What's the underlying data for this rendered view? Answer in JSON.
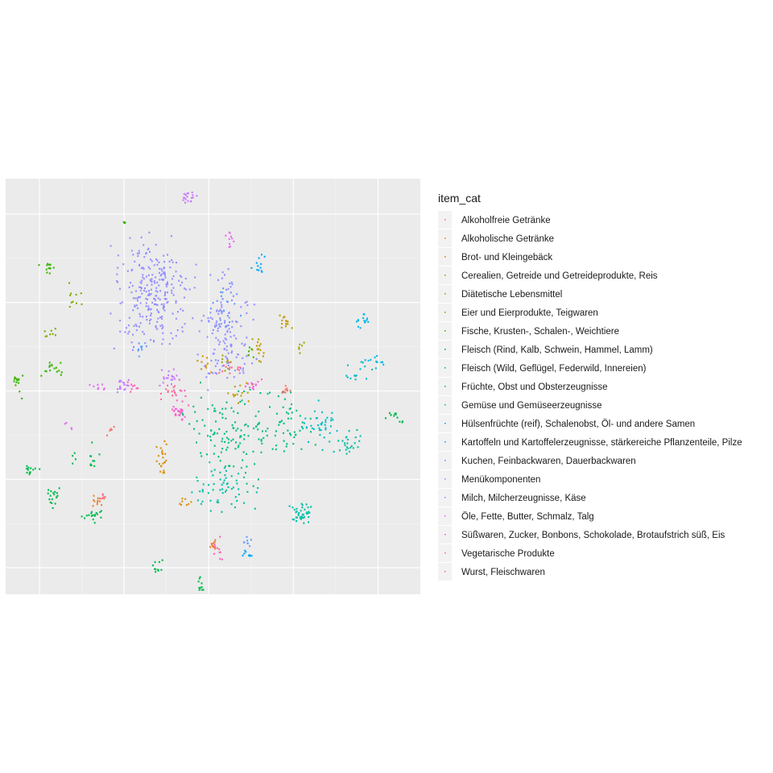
{
  "chart_data": {
    "type": "scatter",
    "title": "",
    "xlabel": "",
    "ylabel": "",
    "x_ticks_shown": false,
    "y_ticks_shown": false,
    "xlim": [
      -48,
      50
    ],
    "ylim": [
      -46,
      48
    ],
    "grid": true,
    "legend_position": "right",
    "legend_title": "item_cat",
    "series": [
      {
        "name": "Alkoholfreie Getränke",
        "color": "#F8766D",
        "clusters": [
          {
            "cx": 18,
            "cy": 0,
            "sx": 1.6,
            "sy": 1.2,
            "n": 10
          },
          {
            "cx": -23,
            "cy": -9,
            "sx": 2,
            "sy": 1,
            "n": 6
          }
        ]
      },
      {
        "name": "Alkoholische Getränke",
        "color": "#EA8331",
        "clusters": [
          {
            "cx": -26,
            "cy": -25,
            "sx": 2.2,
            "sy": 1,
            "n": 12
          },
          {
            "cx": 1,
            "cy": -35,
            "sx": 1,
            "sy": 1.5,
            "n": 12
          }
        ]
      },
      {
        "name": "Brot- und Kleingebäck",
        "color": "#D89000",
        "clusters": [
          {
            "cx": -1,
            "cy": 6,
            "sx": 1.5,
            "sy": 1.5,
            "n": 10
          },
          {
            "cx": -11,
            "cy": -15,
            "sx": 1,
            "sy": 3,
            "n": 22
          },
          {
            "cx": -6,
            "cy": -25,
            "sx": 1.2,
            "sy": 1.5,
            "n": 8
          }
        ]
      },
      {
        "name": "Cerealien, Getreide und Getreideprodukte, Reis",
        "color": "#C09B00",
        "clusters": [
          {
            "cx": 12,
            "cy": 9,
            "sx": 1.5,
            "sy": 2.5,
            "n": 16
          },
          {
            "cx": 18,
            "cy": 15,
            "sx": 1.5,
            "sy": 1.5,
            "n": 14
          },
          {
            "cx": 7,
            "cy": 0,
            "sx": 2.5,
            "sy": 2,
            "n": 14
          }
        ]
      },
      {
        "name": "Diätetische Lebensmittel",
        "color": "#A3A500",
        "clusters": [
          {
            "cx": 22,
            "cy": 10,
            "sx": 1,
            "sy": 1,
            "n": 6
          },
          {
            "cx": 4,
            "cy": 7,
            "sx": 1.5,
            "sy": 1.5,
            "n": 8
          }
        ]
      },
      {
        "name": "Eier und Eierprodukte, Teigwaren",
        "color": "#7CAE00",
        "clusters": [
          {
            "cx": -32,
            "cy": 22,
            "sx": 1.5,
            "sy": 2.5,
            "n": 10
          },
          {
            "cx": -38,
            "cy": 13,
            "sx": 1.5,
            "sy": 1,
            "n": 8
          }
        ]
      },
      {
        "name": "Fische, Krusten-, Schalen-, Weichtiere",
        "color": "#39B600",
        "clusters": [
          {
            "cx": -38,
            "cy": 28,
            "sx": 1.6,
            "sy": 1.4,
            "n": 14
          },
          {
            "cx": -37,
            "cy": 5,
            "sx": 2.5,
            "sy": 1.5,
            "n": 16
          },
          {
            "cx": -45,
            "cy": 2,
            "sx": 1,
            "sy": 2.5,
            "n": 14
          },
          {
            "cx": -20,
            "cy": 38,
            "sx": 0.5,
            "sy": 0.5,
            "n": 4
          },
          {
            "cx": 10,
            "cy": 9,
            "sx": 1,
            "sy": 1,
            "n": 6
          }
        ]
      },
      {
        "name": "Fleisch (Rind, Kalb, Schwein, Hammel, Lamm)",
        "color": "#00BB4E",
        "clusters": [
          {
            "cx": -42,
            "cy": -18,
            "sx": 1.5,
            "sy": 1,
            "n": 14
          },
          {
            "cx": -37,
            "cy": -24,
            "sx": 1.2,
            "sy": 2.4,
            "n": 18
          },
          {
            "cx": -27,
            "cy": -28,
            "sx": 2,
            "sy": 1.5,
            "n": 18
          },
          {
            "cx": 44,
            "cy": -6,
            "sx": 1.8,
            "sy": 1.2,
            "n": 12
          },
          {
            "cx": -12,
            "cy": -40,
            "sx": 1,
            "sy": 2.5,
            "n": 10
          },
          {
            "cx": -2,
            "cy": -44,
            "sx": 1.2,
            "sy": 2,
            "n": 10
          },
          {
            "cx": -29,
            "cy": -15,
            "sx": 3,
            "sy": 3,
            "n": 14
          }
        ]
      },
      {
        "name": "Fleisch (Wild, Geflügel, Federwild, Innereien)",
        "color": "#00BF7D",
        "clusters": [
          {
            "cx": 5,
            "cy": -10,
            "sx": 8,
            "sy": 8,
            "n": 120
          },
          {
            "cx": 18,
            "cy": -8,
            "sx": 5,
            "sy": 6,
            "n": 50
          }
        ]
      },
      {
        "name": "Früchte, Obst und Obsterzeugnisse",
        "color": "#00C1A7",
        "clusters": [
          {
            "cx": 4,
            "cy": -22,
            "sx": 7,
            "sy": 5,
            "n": 60
          },
          {
            "cx": 22,
            "cy": -28,
            "sx": 2,
            "sy": 2,
            "n": 40
          },
          {
            "cx": 33,
            "cy": -12,
            "sx": 2.5,
            "sy": 2.5,
            "n": 24
          }
        ]
      },
      {
        "name": "Gemüse und Gemüseerzeugnisse",
        "color": "#00BFC4",
        "clusters": [
          {
            "cx": 27,
            "cy": -8,
            "sx": 4,
            "sy": 4,
            "n": 40
          },
          {
            "cx": 36,
            "cy": 4,
            "sx": 3,
            "sy": 2,
            "n": 14
          }
        ]
      },
      {
        "name": "Hülsenfrüchte (reif), Schalenobst, Öl- und andere Samen",
        "color": "#00B8E7",
        "clusters": [
          {
            "cx": 36,
            "cy": 16,
            "sx": 1.5,
            "sy": 1.2,
            "n": 14
          },
          {
            "cx": 39,
            "cy": 7,
            "sx": 2,
            "sy": 1.2,
            "n": 12
          }
        ]
      },
      {
        "name": "Kartoffeln und Kartoffelerzeugnisse, stärkereiche Pflanzenteile, Pilze",
        "color": "#00A9FF",
        "clusters": [
          {
            "cx": 12,
            "cy": 29,
            "sx": 1.5,
            "sy": 2,
            "n": 12
          },
          {
            "cx": 9,
            "cy": -37,
            "sx": 0.8,
            "sy": 0.8,
            "n": 8
          }
        ]
      },
      {
        "name": "Kuchen, Feinbackwaren, Dauerbackwaren",
        "color": "#619CFF",
        "clusters": [
          {
            "cx": 4,
            "cy": 20,
            "sx": 3,
            "sy": 5,
            "n": 24
          },
          {
            "cx": -16,
            "cy": 10,
            "sx": 1.5,
            "sy": 1.5,
            "n": 10
          },
          {
            "cx": 9,
            "cy": -34,
            "sx": 1,
            "sy": 1,
            "n": 8
          }
        ]
      },
      {
        "name": "Menükomponenten",
        "color": "#9590FF",
        "clusters": [
          {
            "cx": -13,
            "cy": 22,
            "sx": 7,
            "sy": 10,
            "n": 260
          },
          {
            "cx": 4,
            "cy": 14,
            "sx": 5,
            "sy": 10,
            "n": 140
          }
        ]
      },
      {
        "name": "Milch, Milcherzeugnisse, Käse",
        "color": "#C77CFF",
        "clusters": [
          {
            "cx": -5,
            "cy": 44,
            "sx": 1.5,
            "sy": 1.2,
            "n": 18
          },
          {
            "cx": -20,
            "cy": 1,
            "sx": 2,
            "sy": 1.5,
            "n": 18
          },
          {
            "cx": -9,
            "cy": 3,
            "sx": 2,
            "sy": 2,
            "n": 18
          }
        ]
      },
      {
        "name": "Öle, Fette, Butter, Schmalz, Talg",
        "color": "#E76BF3",
        "clusters": [
          {
            "cx": -26,
            "cy": 1,
            "sx": 1.5,
            "sy": 0.8,
            "n": 8
          },
          {
            "cx": 5,
            "cy": 34,
            "sx": 1.5,
            "sy": 2,
            "n": 10
          },
          {
            "cx": -33,
            "cy": -8,
            "sx": 1,
            "sy": 1,
            "n": 4
          }
        ]
      },
      {
        "name": "Süßwaren, Zucker, Bonbons, Schokolade, Brotaufstrich süß, Eis",
        "color": "#FA62DB",
        "clusters": [
          {
            "cx": -7,
            "cy": -5,
            "sx": 2,
            "sy": 2,
            "n": 16
          },
          {
            "cx": 10,
            "cy": 1,
            "sx": 2,
            "sy": 1.5,
            "n": 12
          }
        ]
      },
      {
        "name": "Vegetarische Produkte",
        "color": "#FF62BC",
        "clusters": [
          {
            "cx": -7,
            "cy": -3,
            "sx": 2,
            "sy": 4,
            "n": 20
          },
          {
            "cx": 2,
            "cy": -36,
            "sx": 1,
            "sy": 2,
            "n": 10
          },
          {
            "cx": -18,
            "cy": 1,
            "sx": 1.5,
            "sy": 1.5,
            "n": 8
          }
        ]
      },
      {
        "name": "Wurst, Fleischwaren",
        "color": "#FF6C91",
        "clusters": [
          {
            "cx": -10,
            "cy": 0,
            "sx": 1.5,
            "sy": 1.5,
            "n": 12
          },
          {
            "cx": 5,
            "cy": 6,
            "sx": 2,
            "sy": 2,
            "n": 12
          },
          {
            "cx": -25,
            "cy": -24,
            "sx": 1,
            "sy": 1,
            "n": 6
          }
        ]
      }
    ]
  }
}
